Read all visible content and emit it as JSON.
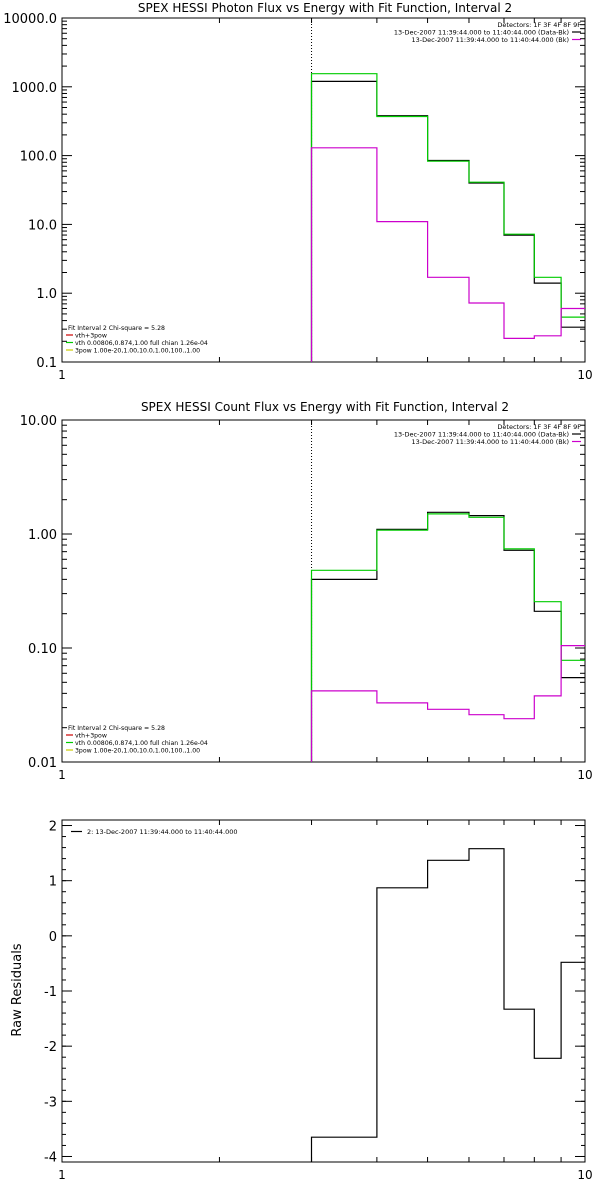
{
  "chart_data": [
    {
      "type": "line",
      "title": "SPEX HESSI Photon Flux vs Energy with Fit Function, Interval 2",
      "xlabel": "",
      "ylabel": "",
      "xscale": "log",
      "yscale": "log",
      "xlim": [
        1,
        10
      ],
      "ylim": [
        0.1,
        10000
      ],
      "xticks": [
        {
          "v": 1,
          "label": "1"
        },
        {
          "v": 10,
          "label": "10"
        }
      ],
      "yticks": [
        {
          "v": 0.1,
          "label": "0.1"
        },
        {
          "v": 1,
          "label": "1.0"
        },
        {
          "v": 10,
          "label": "10.0"
        },
        {
          "v": 100,
          "label": "100.0"
        },
        {
          "v": 1000,
          "label": "1000.0"
        },
        {
          "v": 10000,
          "label": "10000.0"
        }
      ],
      "vline": 3,
      "edges": [
        3,
        4,
        5,
        6,
        7,
        8,
        9,
        10
      ],
      "series": [
        {
          "color": "#000000",
          "values": [
            1200,
            380,
            85,
            40,
            7,
            1.4,
            0.32
          ]
        },
        {
          "color": "#00cc00",
          "values": [
            1550,
            370,
            83,
            41,
            7.2,
            1.7,
            0.45
          ]
        },
        {
          "color": "#cc00cc",
          "values": [
            130,
            11,
            1.7,
            0.72,
            0.22,
            0.24,
            0.6
          ]
        }
      ],
      "legend_top": [
        "Detectors: 1F 3F 4F 8F 9F",
        "13-Dec-2007 11:39:44.000 to 11:40:44.000 (Data-Bk)",
        "13-Dec-2007 11:39:44.000 to 11:40:44.000 (Bk)"
      ],
      "legend_top_colors": [
        "#000000",
        "#cc00cc"
      ],
      "legend_bottom": [
        "Fit Interval 2   Chi-square = 5.28",
        "vth+3pow",
        "vth 0.00806,0.874,1.00  full chian 1.26e-04",
        "3pow 1.00e-20,1.00,10.0,1.00,100.,1.00"
      ],
      "legend_bottom_colors": [
        "#cc0000",
        "#00cc00",
        "#cccc00"
      ]
    },
    {
      "type": "line",
      "title": "SPEX HESSI Count Flux vs Energy with Fit Function, Interval 2",
      "xlabel": "",
      "ylabel": "",
      "xscale": "log",
      "yscale": "log",
      "xlim": [
        1,
        10
      ],
      "ylim": [
        0.01,
        10
      ],
      "xticks": [
        {
          "v": 1,
          "label": "1"
        },
        {
          "v": 10,
          "label": "10"
        }
      ],
      "yticks": [
        {
          "v": 0.01,
          "label": "0.01"
        },
        {
          "v": 0.1,
          "label": "0.10"
        },
        {
          "v": 1,
          "label": "1.00"
        },
        {
          "v": 10,
          "label": "10.00"
        }
      ],
      "vline": 3,
      "edges": [
        3,
        4,
        5,
        6,
        7,
        8,
        9,
        10
      ],
      "series": [
        {
          "color": "#000000",
          "values": [
            0.4,
            1.1,
            1.55,
            1.45,
            0.72,
            0.21,
            0.055
          ]
        },
        {
          "color": "#00cc00",
          "values": [
            0.48,
            1.08,
            1.5,
            1.4,
            0.74,
            0.255,
            0.078
          ]
        },
        {
          "color": "#cc00cc",
          "values": [
            0.042,
            0.033,
            0.029,
            0.026,
            0.024,
            0.038,
            0.105
          ]
        }
      ],
      "legend_top": [
        "Detectors: 1F 3F 4F 8F 9F",
        "13-Dec-2007 11:39:44.000 to 11:40:44.000 (Data-Bk)",
        "13-Dec-2007 11:39:44.000 to 11:40:44.000 (Bk)"
      ],
      "legend_top_colors": [
        "#000000",
        "#cc00cc"
      ],
      "legend_bottom": [
        "Fit Interval 2   Chi-square = 5.28",
        "vth+3pow",
        "vth 0.00806,0.874,1.00  full chian 1.26e-04",
        "3pow 1.00e-20,1.00,10.0,1.00,100.,1.00"
      ],
      "legend_bottom_colors": [
        "#cc0000",
        "#00cc00",
        "#cccc00"
      ]
    },
    {
      "type": "line",
      "title": "",
      "xlabel": "",
      "ylabel": "Raw Residuals",
      "xscale": "log",
      "yscale": "linear",
      "xlim": [
        1,
        10
      ],
      "ylim": [
        -4.1,
        2.1
      ],
      "xticks": [
        {
          "v": 1,
          "label": "1"
        },
        {
          "v": 10,
          "label": "10"
        }
      ],
      "yticks": [
        {
          "v": 2,
          "label": "2"
        },
        {
          "v": 1,
          "label": "1"
        },
        {
          "v": 0,
          "label": "0"
        },
        {
          "v": -1,
          "label": "-1"
        },
        {
          "v": -2,
          "label": "-2"
        },
        {
          "v": -3,
          "label": "-3"
        },
        {
          "v": -4,
          "label": "-4"
        }
      ],
      "edges": [
        3,
        4,
        5,
        6,
        7,
        8,
        9,
        10
      ],
      "series": [
        {
          "color": "#000000",
          "values": [
            -3.65,
            0.87,
            1.37,
            1.58,
            -1.33,
            -2.22,
            -0.48
          ]
        }
      ],
      "legend_top": [
        "2: 13-Dec-2007 11:39:44.000 to 11:40:44.000"
      ],
      "legend_top_colors": [
        "#000000"
      ],
      "legend_bottom": [],
      "legend_bottom_colors": []
    }
  ]
}
